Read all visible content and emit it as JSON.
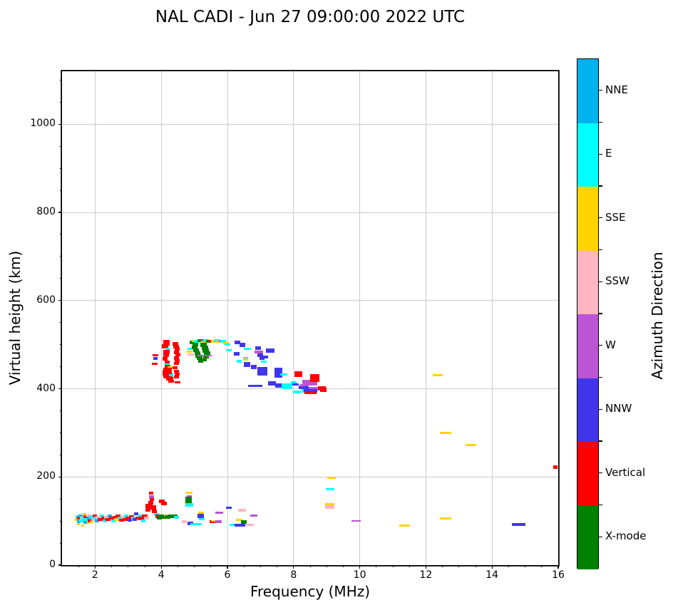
{
  "title": "NAL CADI - Jun 27 09:00:00 2022 UTC",
  "axes": {
    "x": {
      "label": "Frequency (MHz)",
      "min": 1,
      "max": 16,
      "major_ticks": [
        2,
        4,
        6,
        8,
        10,
        12,
        14,
        16
      ],
      "minor_step": 0.5
    },
    "y": {
      "label": "Virtual height (km)",
      "min": 0,
      "max": 1120,
      "major_ticks": [
        0,
        200,
        400,
        600,
        800,
        1000
      ],
      "minor_step": 50
    }
  },
  "colorbar": {
    "label": "Azimuth Direction",
    "segments": [
      {
        "label": "NNE",
        "color": "#00b2ee"
      },
      {
        "label": "E",
        "color": "#00ffff"
      },
      {
        "label": "SSE",
        "color": "#ffd300"
      },
      {
        "label": "SSW",
        "color": "#ffb6c1"
      },
      {
        "label": "W",
        "color": "#ba55d3"
      },
      {
        "label": "NNW",
        "color": "#4136ea"
      },
      {
        "label": "Vertical",
        "color": "#ff0000"
      },
      {
        "label": "X-mode",
        "color": "#008000"
      }
    ]
  },
  "chart_data": {
    "type": "scatter",
    "title": "NAL CADI - Jun 27 09:00:00 2022 UTC",
    "xlabel": "Frequency (MHz)",
    "ylabel": "Virtual height (km)",
    "xlim": [
      1,
      16
    ],
    "ylim": [
      0,
      1120
    ],
    "grid": true,
    "legend_position": "right-colorbar",
    "direction_labels": {
      "NNE": "NNE",
      "E": "E",
      "SSE": "SSE",
      "SSW": "SSW",
      "W": "W",
      "NNW": "NNW",
      "V": "Vertical",
      "X": "X-mode"
    },
    "direction_colors": {
      "NNE": "#00b2ee",
      "E": "#00ffff",
      "SSE": "#ffd300",
      "SSW": "#ffb6c1",
      "W": "#ba55d3",
      "NNW": "#4136ea",
      "V": "#ff0000",
      "X": "#008000"
    },
    "point_format": [
      "freq_MHz",
      "virtual_height_km",
      "direction",
      "w_px",
      "h_px"
    ],
    "points": [
      [
        1.45,
        103,
        "SSE",
        5,
        4
      ],
      [
        1.48,
        110,
        "E",
        6,
        4
      ],
      [
        1.5,
        98,
        "NNE",
        5,
        4
      ],
      [
        1.52,
        106,
        "V",
        6,
        4
      ],
      [
        1.55,
        112,
        "NNE",
        6,
        4
      ],
      [
        1.58,
        100,
        "E",
        6,
        4
      ],
      [
        1.5,
        93,
        "SSE",
        4,
        3
      ],
      [
        1.62,
        89,
        "SSE",
        4,
        3
      ],
      [
        1.6,
        107,
        "SSW",
        6,
        4
      ],
      [
        1.65,
        103,
        "E",
        6,
        4
      ],
      [
        1.68,
        115,
        "SSE",
        5,
        3
      ],
      [
        1.7,
        97,
        "NNE",
        5,
        4
      ],
      [
        1.72,
        110,
        "V",
        6,
        4
      ],
      [
        1.75,
        104,
        "E",
        7,
        4
      ],
      [
        1.78,
        112,
        "SSW",
        6,
        3
      ],
      [
        1.8,
        96,
        "SSE",
        5,
        3
      ],
      [
        1.82,
        107,
        "NNE",
        6,
        4
      ],
      [
        1.85,
        101,
        "V",
        6,
        4
      ],
      [
        1.88,
        110,
        "E",
        6,
        4
      ],
      [
        1.9,
        98,
        "SSE",
        5,
        3
      ],
      [
        1.95,
        104,
        "SSW",
        7,
        4
      ],
      [
        2.0,
        111,
        "V",
        6,
        4
      ],
      [
        2.02,
        106,
        "E",
        6,
        4
      ],
      [
        2.05,
        100,
        "NNE",
        6,
        4
      ],
      [
        2.1,
        109,
        "SSW",
        6,
        4
      ],
      [
        2.15,
        104,
        "V",
        7,
        4
      ],
      [
        2.2,
        111,
        "E",
        6,
        4
      ],
      [
        2.25,
        106,
        "V",
        7,
        4
      ],
      [
        2.3,
        100,
        "E",
        6,
        4
      ],
      [
        2.35,
        109,
        "SSW",
        7,
        4
      ],
      [
        2.4,
        104,
        "V",
        7,
        4
      ],
      [
        2.45,
        111,
        "NNE",
        6,
        4
      ],
      [
        2.5,
        106,
        "V",
        7,
        4
      ],
      [
        2.55,
        101,
        "E",
        6,
        4
      ],
      [
        2.6,
        109,
        "V",
        7,
        4
      ],
      [
        2.65,
        104,
        "SSE",
        6,
        4
      ],
      [
        2.7,
        111,
        "V",
        7,
        4
      ],
      [
        2.75,
        106,
        "E",
        7,
        4
      ],
      [
        2.8,
        102,
        "V",
        7,
        4
      ],
      [
        2.85,
        109,
        "SSW",
        6,
        4
      ],
      [
        2.9,
        104,
        "V",
        7,
        4
      ],
      [
        2.95,
        111,
        "E",
        6,
        4
      ],
      [
        3.0,
        106,
        "V",
        8,
        4
      ],
      [
        3.05,
        102,
        "NNW",
        6,
        4
      ],
      [
        3.1,
        110,
        "V",
        7,
        4
      ],
      [
        3.15,
        106,
        "E",
        6,
        4
      ],
      [
        3.2,
        103,
        "NNW",
        6,
        4
      ],
      [
        3.25,
        117,
        "NNW",
        6,
        4
      ],
      [
        3.3,
        107,
        "V",
        7,
        4
      ],
      [
        3.35,
        111,
        "E",
        6,
        4
      ],
      [
        3.4,
        106,
        "V",
        8,
        5
      ],
      [
        3.45,
        101,
        "E",
        6,
        4
      ],
      [
        3.5,
        110,
        "V",
        8,
        5
      ],
      [
        3.55,
        106,
        "SSW",
        7,
        4
      ],
      [
        3.6,
        126,
        "V",
        7,
        5
      ],
      [
        3.62,
        133,
        "V",
        10,
        8
      ],
      [
        3.68,
        141,
        "V",
        7,
        5
      ],
      [
        3.7,
        163,
        "V",
        6,
        4
      ],
      [
        3.7,
        155,
        "W",
        7,
        4
      ],
      [
        3.72,
        148,
        "V",
        6,
        4
      ],
      [
        3.75,
        131,
        "V",
        8,
        6
      ],
      [
        3.8,
        122,
        "V",
        7,
        5
      ],
      [
        3.85,
        115,
        "E",
        7,
        4
      ],
      [
        3.9,
        110,
        "V",
        8,
        5
      ],
      [
        3.95,
        106,
        "X",
        7,
        4
      ],
      [
        4.02,
        144,
        "V",
        8,
        5
      ],
      [
        4.08,
        139,
        "V",
        8,
        5
      ],
      [
        4.0,
        111,
        "X",
        8,
        4
      ],
      [
        4.1,
        108,
        "X",
        8,
        4
      ],
      [
        4.15,
        113,
        "SSE",
        7,
        3
      ],
      [
        4.2,
        109,
        "X",
        8,
        5
      ],
      [
        4.3,
        110,
        "X",
        9,
        5
      ],
      [
        4.4,
        111,
        "X",
        9,
        5
      ],
      [
        4.45,
        108,
        "E",
        7,
        4
      ],
      [
        4.85,
        164,
        "SSE",
        9,
        3
      ],
      [
        4.85,
        156,
        "W",
        7,
        3
      ],
      [
        4.82,
        149,
        "X",
        9,
        7
      ],
      [
        4.82,
        142,
        "X",
        9,
        6
      ],
      [
        4.85,
        136,
        "E",
        11,
        5
      ],
      [
        4.7,
        98,
        "SSW",
        7,
        4
      ],
      [
        4.88,
        95,
        "NNW",
        8,
        5
      ],
      [
        5.0,
        93,
        "E",
        12,
        3
      ],
      [
        5.15,
        93,
        "E",
        7,
        3
      ],
      [
        5.2,
        119,
        "SSE",
        8,
        3
      ],
      [
        5.2,
        111,
        "NNW",
        9,
        6
      ],
      [
        5.22,
        105,
        "E",
        8,
        3
      ],
      [
        5.55,
        98,
        "V",
        8,
        4
      ],
      [
        5.6,
        101,
        "SSE",
        9,
        2
      ],
      [
        5.73,
        98,
        "W",
        9,
        4
      ],
      [
        5.75,
        119,
        "W",
        11,
        3
      ],
      [
        6.05,
        130,
        "NNW",
        8,
        3
      ],
      [
        6.35,
        103,
        "SSE",
        9,
        3
      ],
      [
        6.5,
        98,
        "X",
        8,
        5
      ],
      [
        6.15,
        91,
        "E",
        8,
        3
      ],
      [
        6.38,
        90,
        "NNW",
        15,
        4
      ],
      [
        6.68,
        92,
        "SSW",
        11,
        3
      ],
      [
        6.45,
        124,
        "SSW",
        11,
        4
      ],
      [
        6.8,
        112,
        "W",
        10,
        3
      ],
      [
        3.82,
        476,
        "V",
        8,
        3
      ],
      [
        3.82,
        468,
        "NNW",
        6,
        4
      ],
      [
        3.8,
        456,
        "V",
        8,
        3
      ],
      [
        4.15,
        505,
        "V",
        9,
        8
      ],
      [
        4.12,
        496,
        "V",
        9,
        6
      ],
      [
        4.18,
        490,
        "E",
        6,
        3
      ],
      [
        4.15,
        484,
        "V",
        9,
        6
      ],
      [
        4.15,
        476,
        "V",
        8,
        6
      ],
      [
        4.12,
        468,
        "V",
        7,
        5
      ],
      [
        4.18,
        461,
        "V",
        7,
        4
      ],
      [
        4.18,
        455,
        "E",
        7,
        3
      ],
      [
        4.2,
        450,
        "V",
        8,
        5
      ],
      [
        4.28,
        448,
        "SSE",
        8,
        4
      ],
      [
        4.2,
        443,
        "V",
        12,
        6
      ],
      [
        4.18,
        436,
        "V",
        13,
        7
      ],
      [
        4.2,
        429,
        "V",
        13,
        7
      ],
      [
        4.25,
        422,
        "V",
        10,
        5
      ],
      [
        4.3,
        431,
        "E",
        6,
        3
      ],
      [
        4.3,
        417,
        "V",
        8,
        4
      ],
      [
        4.5,
        414,
        "V",
        8,
        3
      ],
      [
        4.42,
        502,
        "V",
        8,
        5
      ],
      [
        4.45,
        496,
        "V",
        8,
        5
      ],
      [
        4.48,
        490,
        "V",
        7,
        5
      ],
      [
        4.45,
        483,
        "V",
        7,
        5
      ],
      [
        4.5,
        477,
        "V",
        7,
        5
      ],
      [
        4.45,
        470,
        "V",
        7,
        5
      ],
      [
        4.48,
        463,
        "V",
        7,
        5
      ],
      [
        4.45,
        457,
        "V",
        7,
        4
      ],
      [
        4.42,
        447,
        "V",
        7,
        4
      ],
      [
        4.45,
        440,
        "V",
        7,
        4
      ],
      [
        4.48,
        433,
        "V",
        7,
        4
      ],
      [
        4.45,
        427,
        "V",
        7,
        4
      ],
      [
        4.88,
        490,
        "E",
        9,
        3
      ],
      [
        4.85,
        484,
        "SSE",
        8,
        3
      ],
      [
        4.88,
        477,
        "SSW",
        9,
        3
      ],
      [
        4.95,
        505,
        "X",
        8,
        5
      ],
      [
        5.02,
        500,
        "X",
        8,
        5
      ],
      [
        5.0,
        493,
        "X",
        8,
        5
      ],
      [
        5.05,
        487,
        "X",
        8,
        5
      ],
      [
        5.1,
        481,
        "X",
        8,
        5
      ],
      [
        5.12,
        475,
        "X",
        8,
        5
      ],
      [
        5.15,
        469,
        "X",
        8,
        5
      ],
      [
        5.2,
        463,
        "X",
        7,
        4
      ],
      [
        5.28,
        500,
        "X",
        9,
        6
      ],
      [
        5.32,
        493,
        "X",
        9,
        6
      ],
      [
        5.35,
        487,
        "X",
        9,
        6
      ],
      [
        5.38,
        480,
        "X",
        9,
        6
      ],
      [
        5.35,
        472,
        "X",
        8,
        5
      ],
      [
        5.3,
        466,
        "X",
        7,
        4
      ],
      [
        5.3,
        475,
        "W",
        20,
        2
      ],
      [
        5.0,
        509,
        "SSE",
        7,
        3
      ],
      [
        5.08,
        507,
        "E",
        8,
        4
      ],
      [
        5.18,
        509,
        "X",
        8,
        4
      ],
      [
        5.28,
        507,
        "SSE",
        8,
        3
      ],
      [
        5.35,
        509,
        "E",
        8,
        4
      ],
      [
        5.45,
        508,
        "X",
        9,
        4
      ],
      [
        5.52,
        509,
        "V",
        7,
        3
      ],
      [
        5.6,
        507,
        "SSE",
        9,
        4
      ],
      [
        5.68,
        509,
        "E",
        8,
        4
      ],
      [
        5.75,
        507,
        "SSE",
        8,
        3
      ],
      [
        5.82,
        509,
        "W",
        8,
        3
      ],
      [
        5.88,
        507,
        "E",
        8,
        4
      ],
      [
        5.95,
        504,
        "SSE",
        8,
        3
      ],
      [
        6.0,
        501,
        "E",
        8,
        3
      ],
      [
        6.05,
        487,
        "E",
        8,
        3
      ],
      [
        6.3,
        505,
        "NNW",
        8,
        5
      ],
      [
        6.28,
        480,
        "NNW",
        8,
        5
      ],
      [
        6.35,
        462,
        "E",
        7,
        4
      ],
      [
        6.45,
        500,
        "NNW",
        8,
        6
      ],
      [
        6.6,
        491,
        "E",
        10,
        3
      ],
      [
        6.55,
        470,
        "E",
        7,
        3
      ],
      [
        6.55,
        466,
        "SSE",
        7,
        3
      ],
      [
        6.6,
        455,
        "NNW",
        9,
        7
      ],
      [
        6.8,
        449,
        "NNW",
        8,
        6
      ],
      [
        6.92,
        492,
        "NNW",
        8,
        5
      ],
      [
        6.95,
        483,
        "W",
        12,
        4
      ],
      [
        7.0,
        476,
        "NNW",
        8,
        5
      ],
      [
        7.05,
        468,
        "NNW",
        7,
        4
      ],
      [
        7.1,
        462,
        "E",
        8,
        3
      ],
      [
        7.05,
        440,
        "NNW",
        14,
        12
      ],
      [
        7.3,
        486,
        "NNW",
        12,
        6
      ],
      [
        7.15,
        472,
        "NNW",
        7,
        4
      ],
      [
        7.55,
        437,
        "NNW",
        11,
        14
      ],
      [
        7.7,
        432,
        "E",
        10,
        3
      ],
      [
        6.85,
        406,
        "NNW",
        20,
        3
      ],
      [
        7.35,
        412,
        "NNW",
        11,
        6
      ],
      [
        7.55,
        407,
        "NNW",
        9,
        6
      ],
      [
        7.8,
        405,
        "E",
        15,
        8
      ],
      [
        8.0,
        414,
        "E",
        8,
        4
      ],
      [
        8.05,
        410,
        "NNW",
        9,
        3
      ],
      [
        8.15,
        437,
        "V",
        11,
        4
      ],
      [
        8.15,
        430,
        "V",
        11,
        4
      ],
      [
        8.3,
        403,
        "NNW",
        13,
        5
      ],
      [
        8.3,
        408,
        "W",
        10,
        4
      ],
      [
        8.4,
        414,
        "W",
        13,
        7
      ],
      [
        8.55,
        412,
        "W",
        15,
        5
      ],
      [
        8.6,
        400,
        "W",
        18,
        5
      ],
      [
        8.65,
        425,
        "V",
        13,
        11
      ],
      [
        8.35,
        402,
        "NNW",
        9,
        4
      ],
      [
        8.32,
        395,
        "E",
        7,
        5
      ],
      [
        8.5,
        395,
        "NNW",
        19,
        5
      ],
      [
        8.1,
        392,
        "E",
        11,
        4
      ],
      [
        8.5,
        391,
        "V",
        17,
        3
      ],
      [
        8.85,
        402,
        "V",
        11,
        5
      ],
      [
        8.9,
        398,
        "V",
        9,
        6
      ],
      [
        9.15,
        198,
        "SSE",
        12,
        3
      ],
      [
        9.1,
        172,
        "E",
        12,
        3
      ],
      [
        9.1,
        137,
        "SSE",
        13,
        4
      ],
      [
        9.1,
        131,
        "SSW",
        13,
        5
      ],
      [
        9.9,
        100,
        "W",
        13,
        2
      ],
      [
        11.35,
        90,
        "SSE",
        15,
        3
      ],
      [
        12.35,
        430,
        "SSE",
        14,
        3
      ],
      [
        12.6,
        300,
        "SSE",
        16,
        3
      ],
      [
        13.35,
        272,
        "SSE",
        15,
        3
      ],
      [
        12.6,
        106,
        "SSE",
        16,
        3
      ],
      [
        14.8,
        92,
        "NNW",
        19,
        4
      ],
      [
        15.92,
        222,
        "V",
        6,
        5
      ]
    ]
  }
}
